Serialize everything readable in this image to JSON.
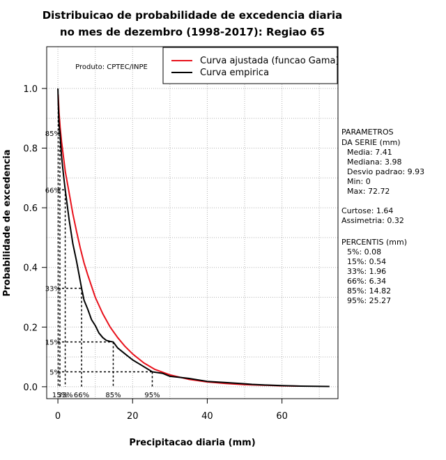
{
  "chart_data": {
    "type": "line",
    "title": [
      "Distribuicao de probabilidade de excedencia diaria",
      "no mes de dezembro (1998-2017): Regiao 65"
    ],
    "xlabel": "Precipitacao diaria (mm)",
    "ylabel": "Probabilidade de excedencia",
    "xlim": [
      -3,
      75
    ],
    "ylim": [
      -0.04,
      1.14
    ],
    "xticks": [
      0,
      20,
      40,
      60
    ],
    "yticks": [
      0.0,
      0.2,
      0.4,
      0.6,
      0.8,
      1.0
    ],
    "xtick_labels": [
      "0",
      "20",
      "40",
      "60"
    ],
    "ytick_labels": [
      "0.0",
      "0.2",
      "0.4",
      "0.6",
      "0.8",
      "1.0"
    ],
    "grid": true,
    "legend_position": "top-right",
    "product_label": "Produto: CPTEC/INPE",
    "series": [
      {
        "name": "Curva ajustada (funcao Gama)",
        "color": "#e8101a",
        "x": [
          0.08,
          0.3,
          0.6,
          1,
          1.5,
          2,
          3,
          4,
          5,
          6,
          7,
          8,
          10,
          12,
          14,
          16,
          18,
          20,
          23,
          26,
          30,
          35,
          40,
          45,
          50,
          55,
          60,
          65
        ],
        "y": [
          0.98,
          0.92,
          0.87,
          0.82,
          0.77,
          0.72,
          0.65,
          0.58,
          0.52,
          0.465,
          0.415,
          0.375,
          0.3,
          0.245,
          0.2,
          0.165,
          0.135,
          0.11,
          0.08,
          0.058,
          0.04,
          0.025,
          0.016,
          0.011,
          0.007,
          0.005,
          0.003,
          0.002
        ]
      },
      {
        "name": "Curva empirica",
        "color": "#000000",
        "x": [
          0,
          0.1,
          0.3,
          0.54,
          1,
          1.5,
          1.96,
          3,
          4,
          5,
          6.34,
          7,
          8,
          9,
          10,
          11,
          12,
          13,
          14,
          14.82,
          16,
          18,
          20,
          22,
          25.27,
          28,
          30,
          35,
          40,
          45,
          50,
          52,
          55,
          60,
          65,
          72.72
        ],
        "y": [
          1.0,
          0.95,
          0.88,
          0.85,
          0.77,
          0.71,
          0.66,
          0.56,
          0.48,
          0.42,
          0.33,
          0.29,
          0.26,
          0.225,
          0.205,
          0.18,
          0.165,
          0.155,
          0.152,
          0.15,
          0.13,
          0.11,
          0.09,
          0.075,
          0.05,
          0.045,
          0.035,
          0.028,
          0.018,
          0.014,
          0.01,
          0.008,
          0.006,
          0.004,
          0.002,
          0.001
        ]
      }
    ],
    "percentile_markers": [
      {
        "label": "5%",
        "x": 0.08,
        "y": 0.95,
        "y_label": "",
        "x_label": ""
      },
      {
        "label": "15%",
        "x": 0.54,
        "y": 0.85,
        "y_label": "85%",
        "x_label": "15%"
      },
      {
        "label": "33%",
        "x": 1.96,
        "y": 0.66,
        "y_label": "66%",
        "x_label": "33%"
      },
      {
        "label": "66%",
        "x": 6.34,
        "y": 0.33,
        "y_label": "33%",
        "x_label": "66%"
      },
      {
        "label": "85%",
        "x": 14.82,
        "y": 0.15,
        "y_label": "15%",
        "x_label": "85%"
      },
      {
        "label": "95%",
        "x": 25.27,
        "y": 0.05,
        "y_label": "5%",
        "x_label": "95%"
      }
    ]
  },
  "side_panel": {
    "params_title": [
      "PARAMETROS",
      "DA SERIE (mm)"
    ],
    "params": [
      "Media: 7.41",
      "Mediana: 3.98",
      "Desvio padrao: 9.93",
      "Min: 0",
      "Max: 72.72"
    ],
    "shape": [
      "Curtose: 1.64",
      "Assimetria: 0.32"
    ],
    "percentis_title": "PERCENTIS (mm)",
    "percentis": [
      "5%: 0.08",
      "15%: 0.54",
      "33%: 1.96",
      "66%: 6.34",
      "85%: 14.82",
      "95%: 25.27"
    ]
  }
}
